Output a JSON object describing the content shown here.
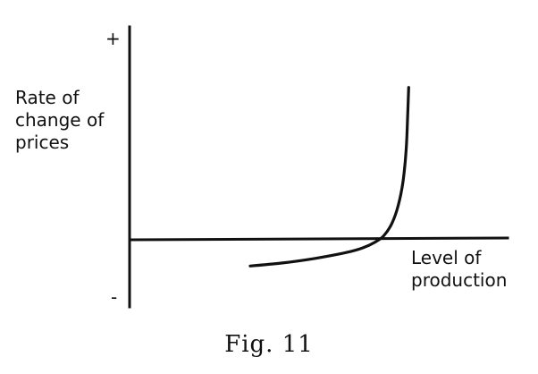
{
  "chart_data": {
    "type": "line",
    "ylabel": [
      "Rate of",
      "change of",
      "prices"
    ],
    "xlabel": [
      "Level of",
      "production"
    ],
    "y_positive_marker": "+",
    "y_negative_marker": "-",
    "caption": "Fig. 11",
    "series": [
      {
        "points": [
          [
            0.0,
            -0.18
          ],
          [
            0.2,
            -0.16
          ],
          [
            0.4,
            -0.13
          ],
          [
            0.6,
            -0.09
          ],
          [
            0.7,
            -0.06
          ],
          [
            0.78,
            -0.02
          ],
          [
            0.83,
            0.02
          ],
          [
            0.88,
            0.1
          ],
          [
            0.92,
            0.22
          ],
          [
            0.95,
            0.38
          ],
          [
            0.97,
            0.6
          ],
          [
            0.98,
            0.85
          ],
          [
            0.985,
            1.0
          ]
        ]
      }
    ],
    "xlim": [
      -0.75,
      1.6
    ],
    "ylim": [
      -0.45,
      1.4
    ],
    "grid": false
  }
}
